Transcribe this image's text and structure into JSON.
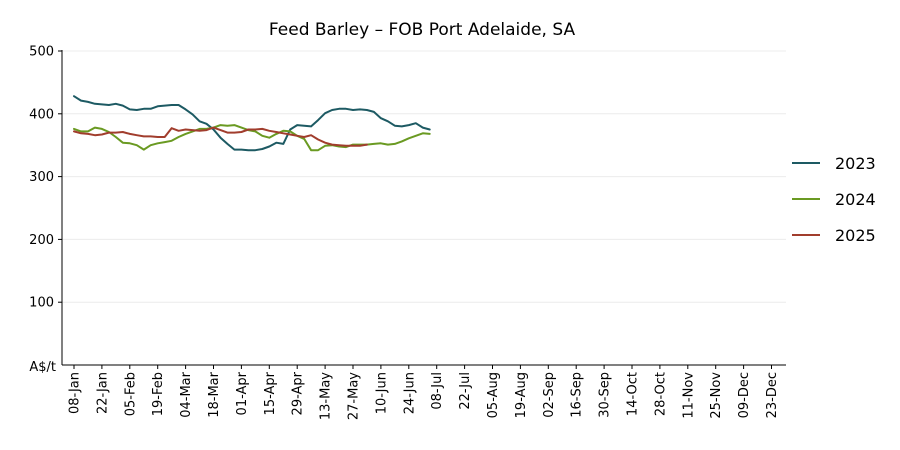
{
  "chart_data": {
    "type": "line",
    "title": "Feed Barley – FOB Port Adelaide, SA",
    "ylabel": "A$/t",
    "xlabel": "",
    "ylim": [
      0,
      500
    ],
    "yticks": [
      100,
      200,
      300,
      400,
      500
    ],
    "xticks": [
      "08-Jan",
      "22-Jan",
      "05-Feb",
      "19-Feb",
      "04-Mar",
      "18-Mar",
      "01-Apr",
      "15-Apr",
      "29-Apr",
      "13-May",
      "27-May",
      "10-Jun",
      "24-Jun",
      "08-Jul",
      "22-Jul",
      "05-Aug",
      "19-Aug",
      "02-Sep",
      "16-Sep",
      "30-Sep",
      "14-Oct",
      "28-Oct",
      "11-Nov",
      "25-Nov",
      "09-Dec",
      "23-Dec"
    ],
    "grid": "horizontal",
    "legend_position": "right",
    "series": [
      {
        "name": "2023",
        "color": "#1d5a63",
        "values": [
          428,
          421,
          419,
          416,
          415,
          414,
          416,
          413,
          407,
          406,
          408,
          408,
          412,
          413,
          414,
          414,
          407,
          399,
          388,
          384,
          375,
          362,
          352,
          343,
          343,
          342,
          342,
          344,
          348,
          354,
          352,
          375,
          382,
          381,
          380,
          390,
          401,
          406,
          408,
          408,
          406,
          407,
          406,
          403,
          393,
          388,
          381,
          380,
          382,
          385,
          378,
          375
        ]
      },
      {
        "name": "2024",
        "color": "#6a9a22",
        "values": [
          376,
          372,
          372,
          378,
          376,
          371,
          363,
          354,
          353,
          350,
          343,
          350,
          353,
          355,
          357,
          363,
          368,
          372,
          376,
          376,
          378,
          382,
          381,
          382,
          378,
          374,
          372,
          365,
          362,
          368,
          373,
          372,
          365,
          360,
          342,
          342,
          349,
          350,
          348,
          347,
          351,
          351,
          351,
          352,
          353,
          351,
          352,
          356,
          361,
          365,
          369,
          368
        ]
      },
      {
        "name": "2025",
        "color": "#a13d2d",
        "values": [
          372,
          369,
          368,
          366,
          367,
          370,
          370,
          371,
          368,
          366,
          364,
          364,
          363,
          363,
          377,
          373,
          375,
          374,
          373,
          374,
          378,
          374,
          370,
          370,
          371,
          375,
          375,
          376,
          373,
          371,
          369,
          367,
          365,
          363,
          366,
          359,
          354,
          351,
          350,
          349,
          349,
          349,
          351
        ]
      }
    ]
  }
}
